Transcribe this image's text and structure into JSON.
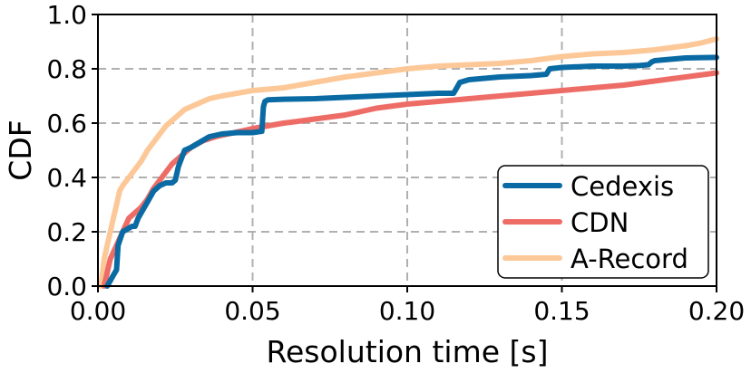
{
  "chart_data": {
    "type": "line",
    "xlabel": "Resolution time [s]",
    "ylabel": "CDF",
    "xlim": [
      0.0,
      0.2
    ],
    "ylim": [
      0.0,
      1.0
    ],
    "xticks": [
      "0.00",
      "0.05",
      "0.10",
      "0.15",
      "0.20"
    ],
    "yticks": [
      "0.0",
      "0.2",
      "0.4",
      "0.6",
      "0.8",
      "1.0"
    ],
    "grid": true,
    "legend_position": "bottom-right",
    "series": [
      {
        "name": "Cedexis",
        "color": "#0a6aa3",
        "x": [
          0.003,
          0.004,
          0.005,
          0.006,
          0.0065,
          0.008,
          0.011,
          0.012,
          0.013,
          0.014,
          0.016,
          0.018,
          0.02,
          0.022,
          0.024,
          0.025,
          0.026,
          0.028,
          0.03,
          0.033,
          0.036,
          0.04,
          0.045,
          0.05,
          0.053,
          0.0535,
          0.054,
          0.055,
          0.06,
          0.07,
          0.08,
          0.09,
          0.1,
          0.11,
          0.115,
          0.116,
          0.117,
          0.12,
          0.13,
          0.14,
          0.145,
          0.146,
          0.15,
          0.16,
          0.17,
          0.175,
          0.178,
          0.179,
          0.18,
          0.19,
          0.2
        ],
        "y": [
          0.0,
          0.02,
          0.04,
          0.06,
          0.15,
          0.2,
          0.22,
          0.22,
          0.25,
          0.27,
          0.31,
          0.35,
          0.37,
          0.38,
          0.38,
          0.39,
          0.44,
          0.5,
          0.51,
          0.53,
          0.55,
          0.56,
          0.565,
          0.565,
          0.57,
          0.66,
          0.68,
          0.686,
          0.688,
          0.69,
          0.695,
          0.7,
          0.705,
          0.71,
          0.71,
          0.73,
          0.75,
          0.76,
          0.77,
          0.775,
          0.78,
          0.8,
          0.805,
          0.81,
          0.81,
          0.812,
          0.815,
          0.825,
          0.83,
          0.84,
          0.842
        ]
      },
      {
        "name": "CDN",
        "color": "#ee6c66",
        "x": [
          0.002,
          0.003,
          0.004,
          0.006,
          0.008,
          0.01,
          0.012,
          0.014,
          0.016,
          0.018,
          0.02,
          0.022,
          0.024,
          0.026,
          0.028,
          0.03,
          0.034,
          0.038,
          0.042,
          0.046,
          0.05,
          0.055,
          0.06,
          0.065,
          0.07,
          0.08,
          0.09,
          0.1,
          0.11,
          0.12,
          0.13,
          0.14,
          0.15,
          0.16,
          0.17,
          0.18,
          0.19,
          0.2
        ],
        "y": [
          0.0,
          0.05,
          0.1,
          0.15,
          0.2,
          0.25,
          0.27,
          0.29,
          0.32,
          0.36,
          0.39,
          0.42,
          0.45,
          0.47,
          0.49,
          0.51,
          0.535,
          0.55,
          0.56,
          0.57,
          0.58,
          0.59,
          0.6,
          0.607,
          0.615,
          0.63,
          0.655,
          0.67,
          0.68,
          0.69,
          0.7,
          0.71,
          0.72,
          0.73,
          0.74,
          0.755,
          0.77,
          0.785
        ]
      },
      {
        "name": "A-Record",
        "color": "#fdc898",
        "x": [
          0.001,
          0.002,
          0.003,
          0.004,
          0.005,
          0.006,
          0.007,
          0.008,
          0.01,
          0.012,
          0.014,
          0.016,
          0.018,
          0.02,
          0.022,
          0.025,
          0.028,
          0.032,
          0.036,
          0.04,
          0.045,
          0.05,
          0.06,
          0.07,
          0.08,
          0.09,
          0.1,
          0.11,
          0.12,
          0.13,
          0.14,
          0.15,
          0.16,
          0.17,
          0.18,
          0.19,
          0.195,
          0.2
        ],
        "y": [
          0.0,
          0.1,
          0.15,
          0.2,
          0.25,
          0.3,
          0.35,
          0.37,
          0.4,
          0.43,
          0.46,
          0.5,
          0.53,
          0.56,
          0.59,
          0.62,
          0.65,
          0.67,
          0.69,
          0.7,
          0.71,
          0.72,
          0.73,
          0.75,
          0.77,
          0.785,
          0.8,
          0.81,
          0.815,
          0.82,
          0.83,
          0.845,
          0.855,
          0.86,
          0.87,
          0.885,
          0.895,
          0.91
        ]
      }
    ]
  }
}
